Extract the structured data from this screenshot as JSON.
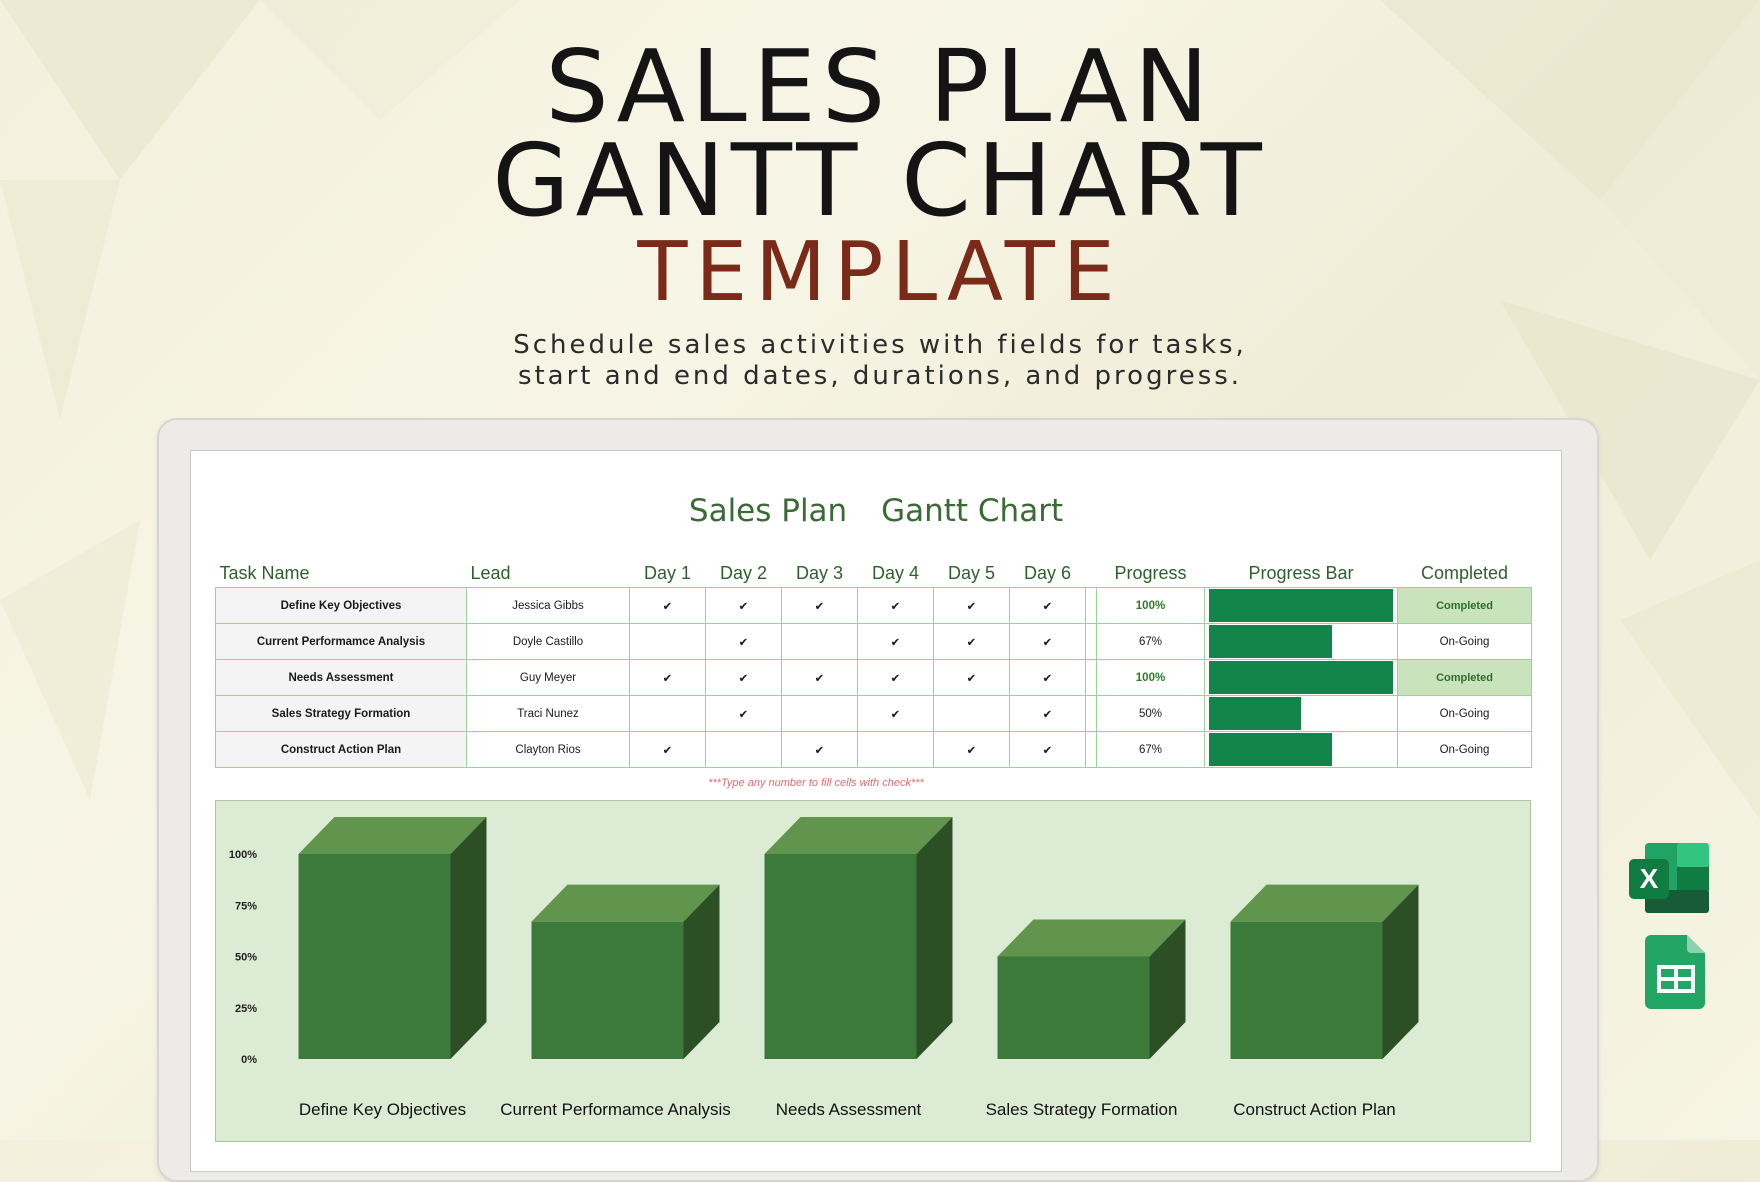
{
  "hero": {
    "title_line1": "SALES PLAN",
    "title_line2": "GANTT CHART",
    "subtitle": "TEMPLATE",
    "description": "Schedule sales activities with fields for tasks, start and end dates, durations, and progress."
  },
  "sheet": {
    "title_part1": "Sales Plan",
    "title_part2": "Gantt Chart",
    "columns": [
      "Task Name",
      "Lead",
      "Day 1",
      "Day 2",
      "Day 3",
      "Day 4",
      "Day 5",
      "Day 6",
      "Progress",
      "Progress Bar",
      "Completed"
    ],
    "check_symbol": "✔",
    "rows": [
      {
        "task": "Define Key Objectives",
        "lead": "Jessica Gibbs",
        "days": [
          true,
          true,
          true,
          true,
          true,
          true
        ],
        "progress": "100%",
        "progress_value": 1.0,
        "status": "Completed"
      },
      {
        "task": "Current Performamce Analysis",
        "lead": "Doyle Castillo",
        "days": [
          false,
          true,
          false,
          true,
          true,
          true
        ],
        "progress": "67%",
        "progress_value": 0.67,
        "status": "On-Going"
      },
      {
        "task": "Needs Assessment",
        "lead": "Guy Meyer",
        "days": [
          true,
          true,
          true,
          true,
          true,
          true
        ],
        "progress": "100%",
        "progress_value": 1.0,
        "status": "Completed"
      },
      {
        "task": "Sales Strategy Formation",
        "lead": "Traci Nunez",
        "days": [
          false,
          true,
          false,
          true,
          false,
          true
        ],
        "progress": "50%",
        "progress_value": 0.5,
        "status": "On-Going"
      },
      {
        "task": "Construct Action Plan",
        "lead": "Clayton Rios",
        "days": [
          true,
          false,
          true,
          false,
          true,
          true
        ],
        "progress": "67%",
        "progress_value": 0.67,
        "status": "On-Going"
      }
    ],
    "note": "***Type any number to fill cells with check***"
  },
  "chart_data": {
    "type": "bar",
    "categories": [
      "Define Key Objectives",
      "Current Performamce Analysis",
      "Needs Assessment",
      "Sales Strategy Formation",
      "Construct Action Plan"
    ],
    "values": [
      100,
      67,
      100,
      50,
      67
    ],
    "yticks": [
      "0%",
      "25%",
      "50%",
      "75%",
      "100%"
    ],
    "ylim": [
      0,
      100
    ],
    "style": "3d",
    "colors": {
      "front": "#3c7a3c",
      "top": "#61944d",
      "side": "#2c4f25",
      "background": "#dcebd3"
    }
  },
  "icons": [
    "excel-icon",
    "google-sheets-icon"
  ]
}
